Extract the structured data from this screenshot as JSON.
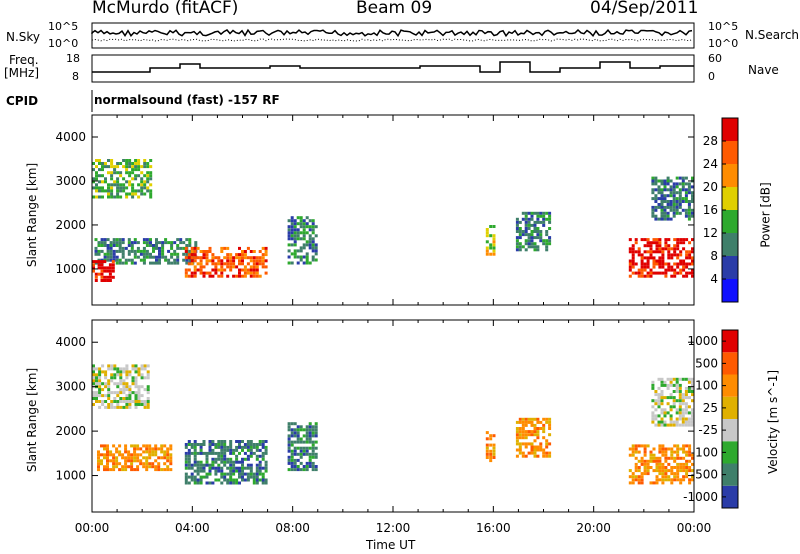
{
  "header": {
    "station": "McMurdo (fitACF)",
    "beam": "Beam 09",
    "date": "04/Sep/2011"
  },
  "top_panel": {
    "left_label": "N.Sky",
    "left_ticks": [
      "10^5",
      "10^0"
    ],
    "right_label": "N.Search",
    "right_ticks": [
      "10^5",
      "10^0"
    ]
  },
  "freq_panel": {
    "left_label_1": "Freq.",
    "left_label_2": "[MHz]",
    "left_ticks": [
      "18",
      "8"
    ],
    "right_label": "Nave",
    "right_ticks": [
      "60",
      "0"
    ]
  },
  "cpid": {
    "label": "CPID",
    "text": "normalsound (fast) -157 RF"
  },
  "chart_data": [
    {
      "type": "heatmap",
      "name": "power",
      "ylabel": "Slant Range [km]",
      "xlabel": "Time UT",
      "ylim": [
        180,
        4500
      ],
      "yticks": [
        "1000",
        "2000",
        "3000",
        "4000"
      ],
      "xticks": [
        "00:00",
        "04:00",
        "08:00",
        "12:00",
        "16:00",
        "20:00",
        "00:00"
      ],
      "colorbar_label": "Power [dB]",
      "colorbar_ticks": [
        "4",
        "8",
        "12",
        "16",
        "20",
        "24",
        "28"
      ],
      "colorbar_colors": [
        "#1010ff",
        "#2a3ca8",
        "#3f7f6a",
        "#2ea92e",
        "#e0d000",
        "#ff8c00",
        "#ff5a00",
        "#e00000"
      ],
      "regions": [
        {
          "t0": 0.0,
          "t1": 2.4,
          "r0": 2600,
          "r1": 3500,
          "level": 3
        },
        {
          "t0": 0.1,
          "t1": 4.2,
          "r0": 1100,
          "r1": 1700,
          "level": 2
        },
        {
          "t0": 0.0,
          "t1": 0.9,
          "r0": 700,
          "r1": 1200,
          "level": 7
        },
        {
          "t0": 3.7,
          "t1": 7.0,
          "r0": 800,
          "r1": 1500,
          "level": 6
        },
        {
          "t0": 7.8,
          "t1": 9.0,
          "r0": 1100,
          "r1": 2200,
          "level": 2
        },
        {
          "t0": 15.7,
          "t1": 16.1,
          "r0": 1300,
          "r1": 2000,
          "level": 4
        },
        {
          "t0": 16.9,
          "t1": 18.3,
          "r0": 1400,
          "r1": 2300,
          "level": 2
        },
        {
          "t0": 21.4,
          "t1": 24.0,
          "r0": 800,
          "r1": 1700,
          "level": 7
        },
        {
          "t0": 22.3,
          "t1": 24.0,
          "r0": 2100,
          "r1": 3100,
          "level": 2
        }
      ]
    },
    {
      "type": "heatmap",
      "name": "velocity",
      "ylabel": "Slant Range [km]",
      "xlabel": "Time UT",
      "ylim": [
        180,
        4500
      ],
      "yticks": [
        "1000",
        "2000",
        "3000",
        "4000"
      ],
      "xticks": [
        "00:00",
        "04:00",
        "08:00",
        "12:00",
        "16:00",
        "20:00",
        "00:00"
      ],
      "colorbar_label": "Velocity [m s^-1]",
      "colorbar_ticks": [
        "1000",
        "500",
        "100",
        "25",
        "-25",
        "-100",
        "-500",
        "-1000"
      ],
      "colorbar_colors": [
        "#2a3ca8",
        "#3f7f6a",
        "#2ea92e",
        "#c8c8c8",
        "#e0b000",
        "#ff8c00",
        "#ff5a00",
        "#e00000"
      ],
      "regions": [
        {
          "t0": 0.0,
          "t1": 2.3,
          "r0": 2500,
          "r1": 3500,
          "level": 3
        },
        {
          "t0": 0.2,
          "t1": 3.2,
          "r0": 1100,
          "r1": 1700,
          "level": 5
        },
        {
          "t0": 3.7,
          "t1": 7.0,
          "r0": 800,
          "r1": 1800,
          "level": 1
        },
        {
          "t0": 7.8,
          "t1": 9.0,
          "r0": 1100,
          "r1": 2200,
          "level": 1
        },
        {
          "t0": 15.7,
          "t1": 16.1,
          "r0": 1300,
          "r1": 2000,
          "level": 5
        },
        {
          "t0": 16.9,
          "t1": 18.3,
          "r0": 1400,
          "r1": 2300,
          "level": 5
        },
        {
          "t0": 21.4,
          "t1": 24.0,
          "r0": 800,
          "r1": 1700,
          "level": 5
        },
        {
          "t0": 22.3,
          "t1": 24.0,
          "r0": 2100,
          "r1": 3200,
          "level": 3
        }
      ]
    }
  ]
}
